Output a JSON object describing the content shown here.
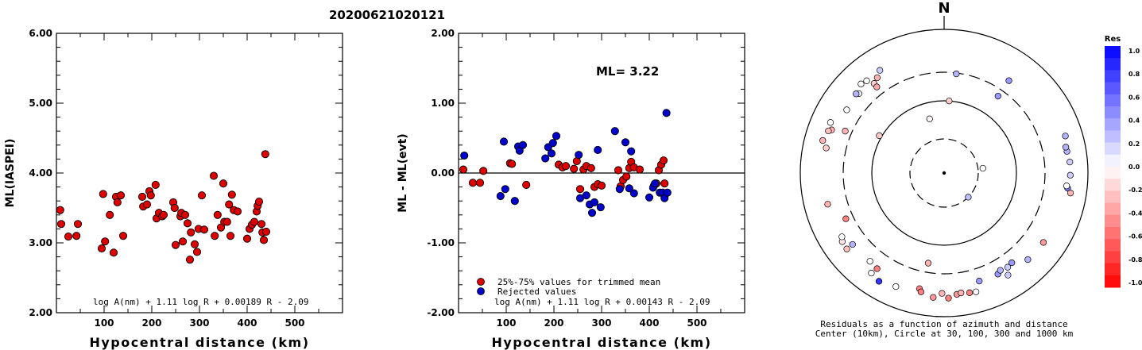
{
  "title": "20200621020121",
  "chart_data": [
    {
      "type": "scatter",
      "xlabel": "Hypocentral distance (km)",
      "ylabel": "ML(IASPEI)",
      "xlim": [
        0,
        600
      ],
      "ylim": [
        2.0,
        6.0
      ],
      "xticks": [
        "100",
        "200",
        "300",
        "400",
        "500"
      ],
      "yticks": [
        "2.00",
        "3.00",
        "4.00",
        "5.00",
        "6.00"
      ],
      "formula": "log A(nm) + 1.11 log R + 0.00189 R - 2.09",
      "points": [
        [
          8,
          3.47
        ],
        [
          10,
          3.27
        ],
        [
          25,
          3.09
        ],
        [
          42,
          3.1
        ],
        [
          45,
          3.27
        ],
        [
          95,
          2.92
        ],
        [
          98,
          3.7
        ],
        [
          102,
          3.02
        ],
        [
          112,
          3.4
        ],
        [
          120,
          2.86
        ],
        [
          125,
          3.66
        ],
        [
          128,
          3.58
        ],
        [
          135,
          3.68
        ],
        [
          140,
          3.1
        ],
        [
          180,
          3.66
        ],
        [
          182,
          3.52
        ],
        [
          190,
          3.55
        ],
        [
          195,
          3.74
        ],
        [
          198,
          3.68
        ],
        [
          208,
          3.83
        ],
        [
          210,
          3.35
        ],
        [
          215,
          3.43
        ],
        [
          222,
          3.38
        ],
        [
          225,
          3.4
        ],
        [
          245,
          3.58
        ],
        [
          248,
          3.5
        ],
        [
          250,
          2.97
        ],
        [
          260,
          3.38
        ],
        [
          262,
          3.43
        ],
        [
          265,
          3.02
        ],
        [
          270,
          3.4
        ],
        [
          275,
          3.28
        ],
        [
          280,
          2.76
        ],
        [
          282,
          3.15
        ],
        [
          290,
          2.98
        ],
        [
          295,
          2.87
        ],
        [
          298,
          3.2
        ],
        [
          305,
          3.68
        ],
        [
          310,
          3.19
        ],
        [
          330,
          3.96
        ],
        [
          332,
          3.1
        ],
        [
          338,
          3.4
        ],
        [
          345,
          3.22
        ],
        [
          350,
          3.85
        ],
        [
          352,
          3.3
        ],
        [
          358,
          3.3
        ],
        [
          362,
          3.55
        ],
        [
          365,
          3.1
        ],
        [
          368,
          3.69
        ],
        [
          372,
          3.47
        ],
        [
          380,
          3.45
        ],
        [
          400,
          3.06
        ],
        [
          405,
          3.2
        ],
        [
          410,
          3.26
        ],
        [
          415,
          3.3
        ],
        [
          420,
          3.45
        ],
        [
          422,
          3.53
        ],
        [
          425,
          3.59
        ],
        [
          430,
          3.27
        ],
        [
          432,
          3.15
        ],
        [
          435,
          3.04
        ],
        [
          438,
          4.27
        ],
        [
          440,
          3.16
        ]
      ]
    },
    {
      "type": "scatter",
      "xlabel": "Hypocentral distance (km)",
      "ylabel": "ML - ML(evt)",
      "xlim": [
        0,
        600
      ],
      "ylim": [
        -2.0,
        2.0
      ],
      "xticks": [
        "100",
        "200",
        "300",
        "400",
        "500"
      ],
      "yticks": [
        "-2.00",
        "-1.00",
        "0.00",
        "1.00",
        "2.00"
      ],
      "annotation": "ML= 3.22",
      "formula": "log A(nm) + 1.11 log R + 0.00143 R - 2.09",
      "legend": [
        "25%-75% values for trimmed mean",
        "Rejected values"
      ],
      "series": [
        {
          "name": "25%-75% values for trimmed mean",
          "color": "#dd0000",
          "points": [
            [
              10,
              0.05
            ],
            [
              30,
              -0.14
            ],
            [
              45,
              -0.14
            ],
            [
              52,
              0.03
            ],
            [
              108,
              0.14
            ],
            [
              112,
              0.13
            ],
            [
              142,
              -0.17
            ],
            [
              210,
              0.12
            ],
            [
              218,
              0.08
            ],
            [
              225,
              0.1
            ],
            [
              242,
              0.06
            ],
            [
              248,
              0.17
            ],
            [
              255,
              -0.23
            ],
            [
              262,
              0.05
            ],
            [
              268,
              0.1
            ],
            [
              278,
              0.07
            ],
            [
              285,
              -0.2
            ],
            [
              292,
              -0.16
            ],
            [
              300,
              -0.18
            ],
            [
              335,
              0.04
            ],
            [
              340,
              -0.19
            ],
            [
              345,
              -0.1
            ],
            [
              352,
              -0.05
            ],
            [
              358,
              0.07
            ],
            [
              362,
              0.16
            ],
            [
              368,
              0.08
            ],
            [
              380,
              0.05
            ],
            [
              410,
              -0.18
            ],
            [
              415,
              -0.15
            ],
            [
              420,
              0.04
            ],
            [
              425,
              0.12
            ],
            [
              430,
              0.18
            ],
            [
              432,
              -0.15
            ]
          ]
        },
        {
          "name": "Rejected values",
          "color": "#0000cc",
          "points": [
            [
              12,
              0.25
            ],
            [
              88,
              -0.33
            ],
            [
              95,
              0.45
            ],
            [
              98,
              -0.23
            ],
            [
              118,
              -0.4
            ],
            [
              125,
              0.38
            ],
            [
              128,
              0.32
            ],
            [
              135,
              0.4
            ],
            [
              182,
              0.21
            ],
            [
              188,
              0.37
            ],
            [
              195,
              0.28
            ],
            [
              198,
              0.43
            ],
            [
              205,
              0.53
            ],
            [
              252,
              0.26
            ],
            [
              255,
              -0.36
            ],
            [
              268,
              -0.32
            ],
            [
              275,
              -0.45
            ],
            [
              280,
              -0.57
            ],
            [
              285,
              -0.42
            ],
            [
              292,
              0.33
            ],
            [
              298,
              -0.49
            ],
            [
              328,
              0.6
            ],
            [
              338,
              -0.23
            ],
            [
              350,
              0.44
            ],
            [
              358,
              -0.22
            ],
            [
              362,
              0.31
            ],
            [
              368,
              -0.29
            ],
            [
              400,
              -0.35
            ],
            [
              408,
              -0.21
            ],
            [
              412,
              -0.15
            ],
            [
              422,
              -0.28
            ],
            [
              428,
              -0.28
            ],
            [
              432,
              -0.36
            ],
            [
              436,
              0.86
            ],
            [
              438,
              -0.28
            ]
          ]
        }
      ]
    },
    {
      "type": "polar-scatter",
      "north_label": "N",
      "caption_line1": "Residuals as a function of azimuth and distance",
      "caption_line2": "Center (10km), Circle at 30, 100, 300 and 1000 km",
      "colorbar": {
        "title": "Res",
        "ticks": [
          "1.0",
          "0.8",
          "0.6",
          "0.4",
          "0.2",
          "0.0",
          "-0.2",
          "-0.4",
          "-0.6",
          "-0.8",
          "-1.0"
        ],
        "max_color": "#0000ff",
        "min_color": "#ff0000"
      },
      "points": [
        {
          "az": 7,
          "dist": 290,
          "res": 0.3
        },
        {
          "az": 4,
          "dist": 100,
          "res": -0.2
        },
        {
          "az": 35,
          "dist": 420,
          "res": 0.4
        },
        {
          "az": 35,
          "dist": 230,
          "res": 0.4
        },
        {
          "az": 83,
          "dist": 35,
          "res": 0.0
        },
        {
          "az": 135,
          "dist": 30,
          "res": 0.25
        },
        {
          "az": 345,
          "dist": 60,
          "res": -0.05
        },
        {
          "az": 300,
          "dist": 110,
          "res": -0.2
        },
        {
          "az": 328,
          "dist": 530,
          "res": 0.2
        },
        {
          "az": 325,
          "dist": 465,
          "res": -0.3
        },
        {
          "az": 322,
          "dist": 430,
          "res": -0.2
        },
        {
          "az": 320,
          "dist": 520,
          "res": 0.0
        },
        {
          "az": 317,
          "dist": 540,
          "res": 0.0
        },
        {
          "az": 313,
          "dist": 465,
          "res": 0.05
        },
        {
          "az": 312,
          "dist": 490,
          "res": 0.3
        },
        {
          "az": 322,
          "dist": 380,
          "res": -0.35
        },
        {
          "az": 291,
          "dist": 520,
          "res": -0.3
        },
        {
          "az": 294,
          "dist": 580,
          "res": 0.0
        },
        {
          "az": 290,
          "dist": 560,
          "res": -0.25
        },
        {
          "az": 285,
          "dist": 600,
          "res": -0.3
        },
        {
          "az": 282,
          "dist": 520,
          "res": -0.2
        },
        {
          "az": 293,
          "dist": 360,
          "res": -0.3
        },
        {
          "az": 303,
          "dist": 460,
          "res": 0.0
        },
        {
          "az": 255,
          "dist": 520,
          "res": -0.3
        },
        {
          "az": 245,
          "dist": 370,
          "res": -0.5
        },
        {
          "az": 236,
          "dist": 555,
          "res": -0.1
        },
        {
          "az": 238,
          "dist": 520,
          "res": 0.0
        },
        {
          "az": 232,
          "dist": 565,
          "res": -0.25
        },
        {
          "az": 232,
          "dist": 460,
          "res": 0.3
        },
        {
          "az": 220,
          "dist": 450,
          "res": 0.0
        },
        {
          "az": 215,
          "dist": 470,
          "res": -0.5
        },
        {
          "az": 216,
          "dist": 570,
          "res": 0.0
        },
        {
          "az": 211,
          "dist": 615,
          "res": 0.8
        },
        {
          "az": 203,
          "dist": 565,
          "res": 0.0
        },
        {
          "az": 192,
          "dist": 490,
          "res": -0.5
        },
        {
          "az": 191,
          "dist": 530,
          "res": -0.5
        },
        {
          "az": 185,
          "dist": 590,
          "res": -0.4
        },
        {
          "az": 181,
          "dist": 520,
          "res": -0.3
        },
        {
          "az": 178,
          "dist": 595,
          "res": -0.5
        },
        {
          "az": 174,
          "dist": 545,
          "res": -0.4
        },
        {
          "az": 172,
          "dist": 530,
          "res": -0.3
        },
        {
          "az": 168,
          "dist": 550,
          "res": -0.5
        },
        {
          "az": 165,
          "dist": 560,
          "res": 0.0
        },
        {
          "az": 162,
          "dist": 430,
          "res": 0.4
        },
        {
          "az": 152,
          "dist": 440,
          "res": 0.4
        },
        {
          "az": 150,
          "dist": 415,
          "res": 0.3
        },
        {
          "az": 146,
          "dist": 430,
          "res": 0.2
        },
        {
          "az": 143,
          "dist": 415,
          "res": 0.4
        },
        {
          "az": 148,
          "dist": 520,
          "res": 0.2
        },
        {
          "az": 136,
          "dist": 520,
          "res": 0.3
        },
        {
          "az": 125,
          "dist": 530,
          "res": -0.4
        },
        {
          "az": 190,
          "dist": 210,
          "res": -0.3
        },
        {
          "az": 97,
          "dist": 580,
          "res": 0.5
        },
        {
          "az": 96,
          "dist": 560,
          "res": 0.0
        },
        {
          "az": 99,
          "dist": 640,
          "res": -0.3
        },
        {
          "az": 91,
          "dist": 610,
          "res": 0.2
        },
        {
          "az": 85,
          "dist": 610,
          "res": 0.2
        },
        {
          "az": 80,
          "dist": 585,
          "res": 0.3
        },
        {
          "az": 78,
          "dist": 580,
          "res": 0.3
        },
        {
          "az": 73,
          "dist": 620,
          "res": 0.3
        }
      ]
    }
  ]
}
